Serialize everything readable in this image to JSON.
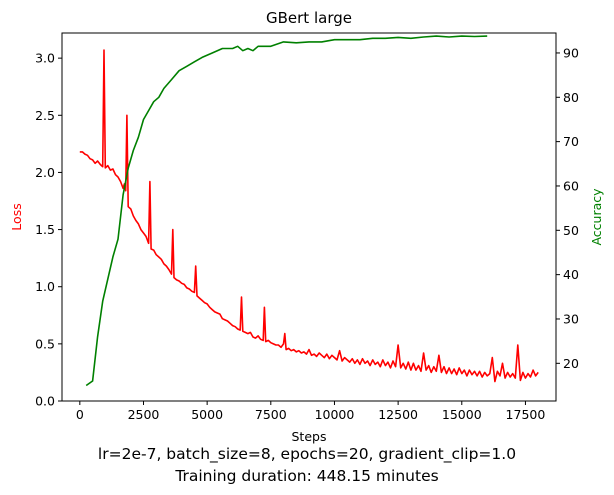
{
  "chart_data": {
    "type": "line",
    "title": "GBert large",
    "xlabel": "Steps",
    "ylabel_left": "Loss",
    "ylabel_right": "Accuracy",
    "xlim": [
      -700,
      18700
    ],
    "ylim_left": [
      0,
      3.22
    ],
    "ylim_right": [
      11.5,
      94.5
    ],
    "x_ticks": [
      0,
      2500,
      5000,
      7500,
      10000,
      12500,
      15000,
      17500
    ],
    "y_left_ticks": [
      0.0,
      0.5,
      1.0,
      1.5,
      2.0,
      2.5,
      3.0
    ],
    "y_right_ticks": [
      20,
      30,
      40,
      50,
      60,
      70,
      80,
      90
    ],
    "grid": false,
    "colors": {
      "loss": "#ff0000",
      "accuracy": "#008000"
    },
    "series": [
      {
        "axis": "left",
        "color": "#ff0000",
        "points": [
          [
            0,
            2.18
          ],
          [
            100,
            2.18
          ],
          [
            200,
            2.16
          ],
          [
            300,
            2.15
          ],
          [
            400,
            2.12
          ],
          [
            500,
            2.11
          ],
          [
            600,
            2.08
          ],
          [
            700,
            2.1
          ],
          [
            800,
            2.07
          ],
          [
            850,
            2.06
          ],
          [
            900,
            2.05
          ],
          [
            950,
            3.07
          ],
          [
            1000,
            2.04
          ],
          [
            1100,
            2.06
          ],
          [
            1200,
            2.02
          ],
          [
            1300,
            2.03
          ],
          [
            1400,
            1.98
          ],
          [
            1500,
            1.96
          ],
          [
            1600,
            1.92
          ],
          [
            1700,
            1.86
          ],
          [
            1750,
            1.9
          ],
          [
            1800,
            1.84
          ],
          [
            1850,
            2.5
          ],
          [
            1900,
            1.7
          ],
          [
            2000,
            1.68
          ],
          [
            2100,
            1.62
          ],
          [
            2200,
            1.58
          ],
          [
            2300,
            1.55
          ],
          [
            2400,
            1.5
          ],
          [
            2500,
            1.47
          ],
          [
            2600,
            1.44
          ],
          [
            2700,
            1.38
          ],
          [
            2750,
            1.92
          ],
          [
            2800,
            1.33
          ],
          [
            2900,
            1.32
          ],
          [
            3000,
            1.28
          ],
          [
            3100,
            1.26
          ],
          [
            3200,
            1.24
          ],
          [
            3300,
            1.2
          ],
          [
            3400,
            1.18
          ],
          [
            3500,
            1.15
          ],
          [
            3600,
            1.11
          ],
          [
            3650,
            1.5
          ],
          [
            3700,
            1.08
          ],
          [
            3800,
            1.06
          ],
          [
            3900,
            1.05
          ],
          [
            4000,
            1.03
          ],
          [
            4100,
            1.02
          ],
          [
            4200,
            0.99
          ],
          [
            4300,
            0.98
          ],
          [
            4400,
            0.96
          ],
          [
            4500,
            0.95
          ],
          [
            4550,
            1.18
          ],
          [
            4600,
            0.92
          ],
          [
            4700,
            0.9
          ],
          [
            4800,
            0.88
          ],
          [
            4900,
            0.86
          ],
          [
            5000,
            0.85
          ],
          [
            5100,
            0.82
          ],
          [
            5200,
            0.8
          ],
          [
            5300,
            0.78
          ],
          [
            5400,
            0.77
          ],
          [
            5500,
            0.76
          ],
          [
            5600,
            0.72
          ],
          [
            5700,
            0.71
          ],
          [
            5800,
            0.7
          ],
          [
            5900,
            0.68
          ],
          [
            6000,
            0.66
          ],
          [
            6100,
            0.65
          ],
          [
            6200,
            0.63
          ],
          [
            6300,
            0.62
          ],
          [
            6350,
            0.91
          ],
          [
            6400,
            0.61
          ],
          [
            6500,
            0.6
          ],
          [
            6600,
            0.59
          ],
          [
            6700,
            0.6
          ],
          [
            6800,
            0.56
          ],
          [
            6900,
            0.55
          ],
          [
            7000,
            0.57
          ],
          [
            7100,
            0.54
          ],
          [
            7200,
            0.53
          ],
          [
            7250,
            0.82
          ],
          [
            7300,
            0.52
          ],
          [
            7400,
            0.53
          ],
          [
            7500,
            0.51
          ],
          [
            7600,
            0.5
          ],
          [
            7700,
            0.49
          ],
          [
            7800,
            0.49
          ],
          [
            7900,
            0.47
          ],
          [
            8000,
            0.5
          ],
          [
            8050,
            0.59
          ],
          [
            8100,
            0.45
          ],
          [
            8200,
            0.46
          ],
          [
            8300,
            0.44
          ],
          [
            8400,
            0.45
          ],
          [
            8500,
            0.43
          ],
          [
            8600,
            0.44
          ],
          [
            8700,
            0.42
          ],
          [
            8800,
            0.43
          ],
          [
            8900,
            0.41
          ],
          [
            9000,
            0.45
          ],
          [
            9100,
            0.4
          ],
          [
            9200,
            0.41
          ],
          [
            9300,
            0.39
          ],
          [
            9400,
            0.42
          ],
          [
            9500,
            0.4
          ],
          [
            9600,
            0.38
          ],
          [
            9700,
            0.41
          ],
          [
            9800,
            0.37
          ],
          [
            9900,
            0.4
          ],
          [
            10000,
            0.38
          ],
          [
            10100,
            0.36
          ],
          [
            10200,
            0.44
          ],
          [
            10300,
            0.35
          ],
          [
            10400,
            0.38
          ],
          [
            10500,
            0.36
          ],
          [
            10600,
            0.34
          ],
          [
            10700,
            0.37
          ],
          [
            10800,
            0.33
          ],
          [
            10900,
            0.36
          ],
          [
            11000,
            0.32
          ],
          [
            11100,
            0.37
          ],
          [
            11200,
            0.33
          ],
          [
            11300,
            0.35
          ],
          [
            11400,
            0.31
          ],
          [
            11500,
            0.36
          ],
          [
            11600,
            0.32
          ],
          [
            11700,
            0.34
          ],
          [
            11800,
            0.3
          ],
          [
            11900,
            0.36
          ],
          [
            12000,
            0.31
          ],
          [
            12100,
            0.34
          ],
          [
            12200,
            0.29
          ],
          [
            12300,
            0.35
          ],
          [
            12400,
            0.3
          ],
          [
            12500,
            0.49
          ],
          [
            12600,
            0.29
          ],
          [
            12700,
            0.33
          ],
          [
            12800,
            0.28
          ],
          [
            12900,
            0.34
          ],
          [
            13000,
            0.27
          ],
          [
            13100,
            0.33
          ],
          [
            13200,
            0.27
          ],
          [
            13300,
            0.31
          ],
          [
            13400,
            0.26
          ],
          [
            13500,
            0.42
          ],
          [
            13600,
            0.27
          ],
          [
            13700,
            0.31
          ],
          [
            13800,
            0.25
          ],
          [
            13900,
            0.3
          ],
          [
            14000,
            0.26
          ],
          [
            14100,
            0.4
          ],
          [
            14200,
            0.25
          ],
          [
            14300,
            0.3
          ],
          [
            14400,
            0.24
          ],
          [
            14500,
            0.29
          ],
          [
            14600,
            0.24
          ],
          [
            14700,
            0.28
          ],
          [
            14800,
            0.23
          ],
          [
            14900,
            0.29
          ],
          [
            15000,
            0.24
          ],
          [
            15100,
            0.27
          ],
          [
            15200,
            0.22
          ],
          [
            15300,
            0.27
          ],
          [
            15400,
            0.23
          ],
          [
            15500,
            0.26
          ],
          [
            15600,
            0.22
          ],
          [
            15700,
            0.26
          ],
          [
            15800,
            0.21
          ],
          [
            15900,
            0.25
          ],
          [
            16000,
            0.22
          ],
          [
            16100,
            0.24
          ],
          [
            16200,
            0.38
          ],
          [
            16300,
            0.17
          ],
          [
            16400,
            0.26
          ],
          [
            16500,
            0.22
          ],
          [
            16600,
            0.33
          ],
          [
            16700,
            0.2
          ],
          [
            16800,
            0.25
          ],
          [
            16900,
            0.21
          ],
          [
            17000,
            0.24
          ],
          [
            17100,
            0.2
          ],
          [
            17200,
            0.49
          ],
          [
            17300,
            0.18
          ],
          [
            17400,
            0.25
          ],
          [
            17500,
            0.2
          ],
          [
            17600,
            0.24
          ],
          [
            17700,
            0.21
          ],
          [
            17800,
            0.27
          ],
          [
            17900,
            0.22
          ],
          [
            18000,
            0.25
          ]
        ]
      },
      {
        "axis": "right",
        "color": "#008000",
        "points": [
          [
            250,
            15
          ],
          [
            500,
            16
          ],
          [
            700,
            26
          ],
          [
            900,
            34
          ],
          [
            1100,
            39
          ],
          [
            1300,
            44
          ],
          [
            1500,
            48
          ],
          [
            1700,
            58
          ],
          [
            1900,
            64
          ],
          [
            2100,
            68
          ],
          [
            2300,
            71
          ],
          [
            2500,
            75
          ],
          [
            2700,
            77
          ],
          [
            2900,
            79
          ],
          [
            3100,
            80
          ],
          [
            3300,
            82
          ],
          [
            3600,
            84
          ],
          [
            3900,
            86
          ],
          [
            4200,
            87
          ],
          [
            4500,
            88
          ],
          [
            4800,
            89
          ],
          [
            5200,
            90
          ],
          [
            5600,
            91
          ],
          [
            6000,
            91
          ],
          [
            6200,
            91.5
          ],
          [
            6400,
            90.5
          ],
          [
            6600,
            91
          ],
          [
            6800,
            90.5
          ],
          [
            7000,
            91.5
          ],
          [
            7500,
            91.5
          ],
          [
            8000,
            92.5
          ],
          [
            8500,
            92.3
          ],
          [
            9000,
            92.5
          ],
          [
            9500,
            92.5
          ],
          [
            10000,
            93
          ],
          [
            10500,
            93
          ],
          [
            11000,
            93
          ],
          [
            11500,
            93.3
          ],
          [
            12000,
            93.3
          ],
          [
            12500,
            93.5
          ],
          [
            13000,
            93.3
          ],
          [
            13500,
            93.6
          ],
          [
            14000,
            93.8
          ],
          [
            14500,
            93.6
          ],
          [
            15000,
            93.8
          ],
          [
            15500,
            93.7
          ],
          [
            16000,
            93.8
          ]
        ]
      }
    ]
  },
  "caption": {
    "line1": "lr=2e-7, batch_size=8, epochs=20, gradient_clip=1.0",
    "line2": "Training duration: 448.15 minutes"
  }
}
